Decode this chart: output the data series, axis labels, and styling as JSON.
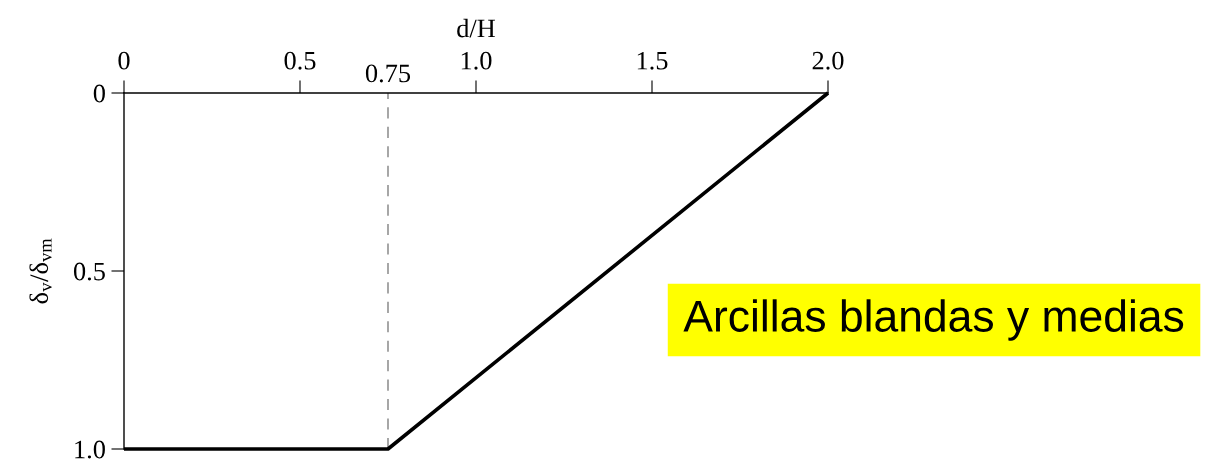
{
  "chart_data": {
    "type": "line",
    "xlabel": "d/H",
    "ylabel": "δ$_{v}$/δ$_{vm}$",
    "x": [
      0,
      0.75,
      2.0
    ],
    "series": [
      {
        "color": "#000000",
        "values": [
          1.0,
          1.0,
          0
        ]
      }
    ],
    "xlim": [
      0,
      2.0
    ],
    "xticks": [
      0,
      0.5,
      {
        "value": 1.0,
        "label": "1.0"
      },
      1.5,
      {
        "value": 2.0,
        "label": "2.0"
      }
    ],
    "ylim": [
      1.0,
      0
    ],
    "yticks": [
      0,
      0.5,
      {
        "value": 1.0,
        "label": "1.0"
      }
    ],
    "ref_lines": [
      {
        "axis": "x",
        "value": 0.75,
        "label": "0.75",
        "color": "#808080",
        "line_style": "dashed"
      }
    ],
    "annotations": [
      "Arcillas blandas y medias"
    ],
    "grid": false,
    "legend": false,
    "marker": "none",
    "line_style": "solid"
  }
}
